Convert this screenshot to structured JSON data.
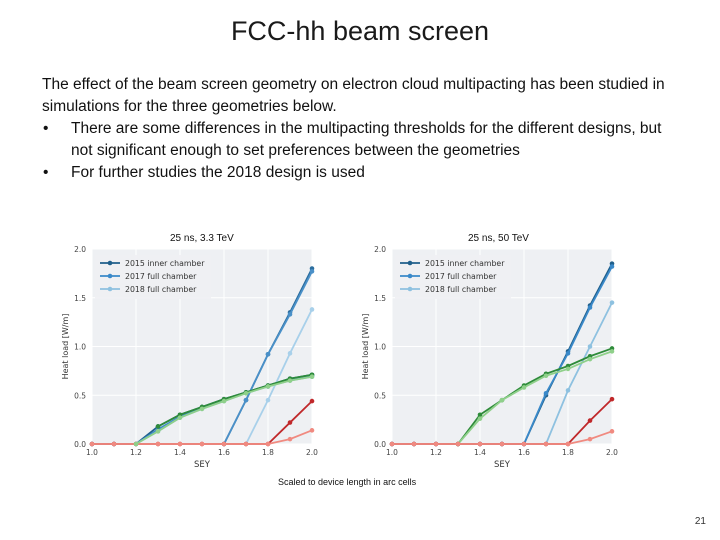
{
  "slide": {
    "title": "FCC-hh beam screen",
    "intro": "The effect of the beam screen geometry on electron cloud multipacting has been studied in simulations for the three geometries below.",
    "bullet_char": "•",
    "bullets": [
      "There are some differences in the multipacting thresholds for the different designs, but not significant enough to set preferences between the geometries",
      "For further studies the 2018 design is used"
    ],
    "caption": "Scaled to device length in arc cells",
    "page_number": "21"
  },
  "chart_data": [
    {
      "type": "line",
      "title": "25 ns, 3.3 TeV",
      "xlabel": "SEY",
      "ylabel": "Heat load [W/m]",
      "xlim": [
        1.0,
        2.0
      ],
      "ylim": [
        0.0,
        2.0
      ],
      "xticks": [
        "1.0",
        "1.2",
        "1.4",
        "1.6",
        "1.8",
        "2.0"
      ],
      "yticks": [
        "0.0",
        "0.5",
        "1.0",
        "1.5",
        "2.0"
      ],
      "legend": "top-left",
      "grid": true,
      "series": [
        {
          "name": "2015 inner chamber",
          "color": "#1f5f8b",
          "marker": true,
          "legend": true,
          "x": [
            1.0,
            1.1,
            1.2,
            1.3,
            1.4,
            1.5,
            1.6,
            1.7,
            1.8,
            1.9,
            2.0
          ],
          "y": [
            0.0,
            0.0,
            0.0,
            0.18,
            0.3,
            0.38,
            0.46,
            0.53,
            0.6,
            0.67,
            0.71
          ]
        },
        {
          "name": "2017 full chamber",
          "color": "#3a89c9",
          "marker": true,
          "legend": true,
          "x": [
            1.0,
            1.1,
            1.2,
            1.3,
            1.4,
            1.5,
            1.6,
            1.7,
            1.8,
            1.9,
            2.0
          ],
          "y": [
            0.0,
            0.0,
            0.0,
            0.15,
            0.28,
            0.37,
            0.45,
            0.53,
            0.59,
            0.66,
            0.7
          ]
        },
        {
          "name": "2018 full chamber",
          "color": "#8ec1e0",
          "marker": true,
          "legend": true,
          "x": [
            1.0,
            1.1,
            1.2,
            1.3,
            1.4,
            1.5,
            1.6,
            1.7,
            1.8,
            1.9,
            2.0
          ],
          "y": [
            0.0,
            0.0,
            0.0,
            0.13,
            0.27,
            0.36,
            0.44,
            0.52,
            0.59,
            0.65,
            0.69
          ]
        },
        {
          "name": "2015 inner chamber (high)",
          "color": "#2b6d9e",
          "marker": true,
          "legend": false,
          "x": [
            1.6,
            1.7,
            1.8,
            1.9,
            2.0
          ],
          "y": [
            0.0,
            0.45,
            0.92,
            1.35,
            1.8
          ]
        },
        {
          "name": "2017 full chamber (high)",
          "color": "#4a90c8",
          "marker": true,
          "legend": false,
          "x": [
            1.6,
            1.7,
            1.8,
            1.9,
            2.0
          ],
          "y": [
            0.0,
            0.45,
            0.92,
            1.33,
            1.77
          ]
        },
        {
          "name": "2018 full chamber (high)",
          "color": "#a8d0ea",
          "marker": true,
          "legend": false,
          "x": [
            1.7,
            1.8,
            1.9,
            2.0
          ],
          "y": [
            0.0,
            0.45,
            0.93,
            1.38
          ]
        },
        {
          "name": "dark red",
          "color": "#c0282a",
          "marker": true,
          "legend": false,
          "x": [
            1.0,
            1.1,
            1.2,
            1.3,
            1.4,
            1.5,
            1.6,
            1.7,
            1.8,
            1.9,
            2.0
          ],
          "y": [
            0.0,
            0.0,
            0.0,
            0.0,
            0.0,
            0.0,
            0.0,
            0.0,
            0.0,
            0.22,
            0.44
          ]
        },
        {
          "name": "light red",
          "color": "#f08a80",
          "marker": true,
          "legend": false,
          "x": [
            1.0,
            1.1,
            1.2,
            1.3,
            1.4,
            1.5,
            1.6,
            1.7,
            1.8,
            1.9,
            2.0
          ],
          "y": [
            0.0,
            0.0,
            0.0,
            0.0,
            0.0,
            0.0,
            0.0,
            0.0,
            0.0,
            0.05,
            0.14
          ]
        },
        {
          "name": "green dark",
          "color": "#2e8b3a",
          "marker": true,
          "legend": false,
          "x": [
            1.3,
            1.4,
            1.5,
            1.6,
            1.7,
            1.8,
            1.9,
            2.0
          ],
          "y": [
            0.18,
            0.3,
            0.38,
            0.46,
            0.53,
            0.6,
            0.67,
            0.71
          ]
        },
        {
          "name": "green light",
          "color": "#8fd08a",
          "marker": true,
          "legend": false,
          "x": [
            1.2,
            1.3,
            1.4,
            1.5,
            1.6,
            1.7,
            1.8,
            1.9,
            2.0
          ],
          "y": [
            0.0,
            0.13,
            0.27,
            0.36,
            0.44,
            0.52,
            0.59,
            0.65,
            0.69
          ]
        }
      ]
    },
    {
      "type": "line",
      "title": "25 ns, 50 TeV",
      "xlabel": "SEY",
      "ylabel": "Heat load [W/m]",
      "xlim": [
        1.0,
        2.0
      ],
      "ylim": [
        0.0,
        2.0
      ],
      "xticks": [
        "1.0",
        "1.2",
        "1.4",
        "1.6",
        "1.8",
        "2.0"
      ],
      "yticks": [
        "0.0",
        "0.5",
        "1.0",
        "1.5",
        "2.0"
      ],
      "legend": "top-left",
      "grid": true,
      "series": [
        {
          "name": "2015 inner chamber",
          "color": "#1f5f8b",
          "marker": true,
          "legend": true,
          "x": [
            1.0,
            1.1,
            1.2,
            1.3,
            1.4,
            1.5,
            1.6,
            1.7,
            1.8,
            1.9,
            2.0
          ],
          "y": [
            0.0,
            0.0,
            0.0,
            0.0,
            0.0,
            0.0,
            0.0,
            0.5,
            0.95,
            1.42,
            1.85
          ]
        },
        {
          "name": "2017 full chamber",
          "color": "#3a89c9",
          "marker": true,
          "legend": true,
          "x": [
            1.0,
            1.1,
            1.2,
            1.3,
            1.4,
            1.5,
            1.6,
            1.7,
            1.8,
            1.9,
            2.0
          ],
          "y": [
            0.0,
            0.0,
            0.0,
            0.0,
            0.0,
            0.0,
            0.0,
            0.52,
            0.93,
            1.4,
            1.82
          ]
        },
        {
          "name": "2018 full chamber",
          "color": "#8ec1e0",
          "marker": true,
          "legend": true,
          "x": [
            1.0,
            1.1,
            1.2,
            1.3,
            1.4,
            1.5,
            1.6,
            1.7,
            1.8,
            1.9,
            2.0
          ],
          "y": [
            0.0,
            0.0,
            0.0,
            0.0,
            0.0,
            0.0,
            0.0,
            0.0,
            0.55,
            1.0,
            1.45
          ]
        },
        {
          "name": "green dark",
          "color": "#2e8b3a",
          "marker": true,
          "legend": false,
          "x": [
            1.3,
            1.4,
            1.5,
            1.6,
            1.7,
            1.8,
            1.9,
            2.0
          ],
          "y": [
            0.0,
            0.3,
            0.45,
            0.6,
            0.72,
            0.8,
            0.9,
            0.98
          ]
        },
        {
          "name": "green light",
          "color": "#8fd08a",
          "marker": true,
          "legend": false,
          "x": [
            1.3,
            1.4,
            1.5,
            1.6,
            1.7,
            1.8,
            1.9,
            2.0
          ],
          "y": [
            0.0,
            0.26,
            0.45,
            0.58,
            0.7,
            0.77,
            0.87,
            0.95
          ]
        },
        {
          "name": "dark red",
          "color": "#c0282a",
          "marker": true,
          "legend": false,
          "x": [
            1.0,
            1.1,
            1.2,
            1.3,
            1.4,
            1.5,
            1.6,
            1.7,
            1.8,
            1.9,
            2.0
          ],
          "y": [
            0.0,
            0.0,
            0.0,
            0.0,
            0.0,
            0.0,
            0.0,
            0.0,
            0.0,
            0.24,
            0.46
          ]
        },
        {
          "name": "light red",
          "color": "#f08a80",
          "marker": true,
          "legend": false,
          "x": [
            1.0,
            1.1,
            1.2,
            1.3,
            1.4,
            1.5,
            1.6,
            1.7,
            1.8,
            1.9,
            2.0
          ],
          "y": [
            0.0,
            0.0,
            0.0,
            0.0,
            0.0,
            0.0,
            0.0,
            0.0,
            0.0,
            0.05,
            0.13
          ]
        }
      ]
    }
  ]
}
